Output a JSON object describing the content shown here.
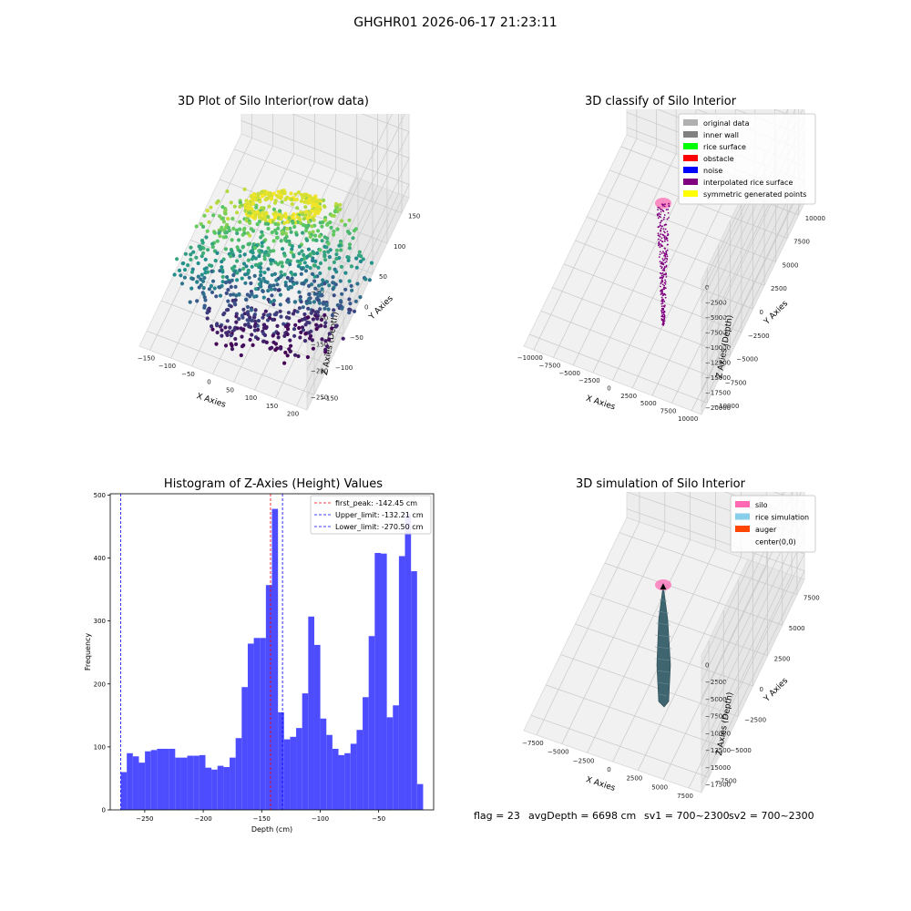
{
  "suptitle": "GHGHR01 2026-06-17 21:23:11",
  "chart_data": [
    {
      "type": "scatter",
      "title": "3D Plot of Silo Interior(row data)",
      "xlabel": "X Axies",
      "ylabel": "Y Axies",
      "zlabel": "Z Axies (Depth)",
      "x_ticks": [
        "−150",
        "−100",
        "−50",
        "0",
        "50",
        "100",
        "150",
        "200"
      ],
      "y_ticks": [
        "150",
        "100",
        "50",
        "0",
        "−50",
        "−100",
        "−150"
      ],
      "z_ticks": [
        "−50",
        "−100",
        "−150",
        "−200",
        "−250"
      ],
      "xlim": [
        -175,
        210
      ],
      "ylim": [
        -175,
        175
      ],
      "zlim": [
        -285,
        -30
      ],
      "colormap": "viridis",
      "grid": true
    },
    {
      "type": "scatter",
      "title": "3D classify of Silo Interior",
      "xlabel": "X Axies",
      "ylabel": "Y Axies",
      "zlabel": "Z Axies (Depth)",
      "x_ticks": [
        "−10000",
        "−7500",
        "−5000",
        "−2500",
        "0",
        "2500",
        "5000",
        "7500",
        "10000"
      ],
      "y_ticks": [
        "10000",
        "7500",
        "5000",
        "2500",
        "0",
        "−2500",
        "−5000",
        "−7500",
        "−10000"
      ],
      "z_ticks": [
        "0",
        "−2500",
        "−5000",
        "−7500",
        "−10000",
        "−12500",
        "−15000",
        "−17500",
        "−20000"
      ],
      "legend_position": "top-right",
      "legend": [
        {
          "label": "original data",
          "color": "#b0b0b0"
        },
        {
          "label": "inner wall",
          "color": "#808080"
        },
        {
          "label": "rice surface",
          "color": "#00ff00"
        },
        {
          "label": "obstacle",
          "color": "#ff0000"
        },
        {
          "label": "noise",
          "color": "#0000ff"
        },
        {
          "label": "interpolated rice surface",
          "color": "#800080"
        },
        {
          "label": "symmetric generated points",
          "color": "#ffff00"
        }
      ],
      "grid": true
    },
    {
      "type": "bar",
      "title": "Histogram of Z-Axies (Height) Values",
      "xlabel": "Depth (cm)",
      "ylabel": "Frequency",
      "x_ticks": [
        -250,
        -200,
        -150,
        -100,
        -50
      ],
      "y_ticks": [
        0,
        100,
        200,
        300,
        400,
        500
      ],
      "xlim": [
        -279.5,
        -3
      ],
      "ylim": [
        0,
        502
      ],
      "bin_start": -270.5,
      "bin_width": 5.17,
      "values": [
        60,
        90,
        85,
        75,
        93,
        95,
        97,
        97,
        97,
        83,
        83,
        86,
        86,
        87,
        67,
        64,
        70,
        68,
        83,
        114,
        195,
        264,
        273,
        273,
        357,
        478,
        155,
        112,
        116,
        130,
        185,
        307,
        262,
        145,
        119,
        97,
        87,
        90,
        105,
        127,
        179,
        276,
        408,
        407,
        147,
        166,
        403,
        470,
        379,
        41
      ],
      "bar_color": "#4d4dff",
      "vlines": [
        {
          "label": "first_peak: -142.45 cm",
          "x": -142.45,
          "color": "#ff0000"
        },
        {
          "label": "Upper_limit: -132.21 cm",
          "x": -132.21,
          "color": "#0000ff"
        },
        {
          "label": "Lower_limit: -270.50 cm",
          "x": -270.5,
          "color": "#0000ff"
        }
      ],
      "legend_position": "top-right",
      "grid": false
    },
    {
      "type": "area",
      "title": "3D simulation of Silo Interior",
      "xlabel": "X Axies",
      "ylabel": "Y Axies",
      "zlabel": "Z Axies (Depth)",
      "x_ticks": [
        "−7500",
        "−5000",
        "−2500",
        "0",
        "2500",
        "5000",
        "7500"
      ],
      "y_ticks": [
        "7500",
        "5000",
        "2500",
        "0",
        "−2500",
        "−5000",
        "−7500"
      ],
      "z_ticks": [
        "0",
        "−2500",
        "−5000",
        "−7500",
        "−10000",
        "−12500",
        "−15000",
        "−17500"
      ],
      "legend_position": "top-right",
      "legend": [
        {
          "label": "silo",
          "color": "#ff69b4"
        },
        {
          "label": "rice simulation",
          "color": "#87ceeb"
        },
        {
          "label": "auger",
          "color": "#ff4500"
        },
        {
          "label": "center(0,0)",
          "color": ""
        }
      ],
      "grid": true
    }
  ],
  "footer": {
    "flag": "flag = 23",
    "avg_depth": "avgDepth = 6698 cm",
    "sv1": "sv1 = 700~2300",
    "sv2": "sv2 = 700~2300"
  }
}
